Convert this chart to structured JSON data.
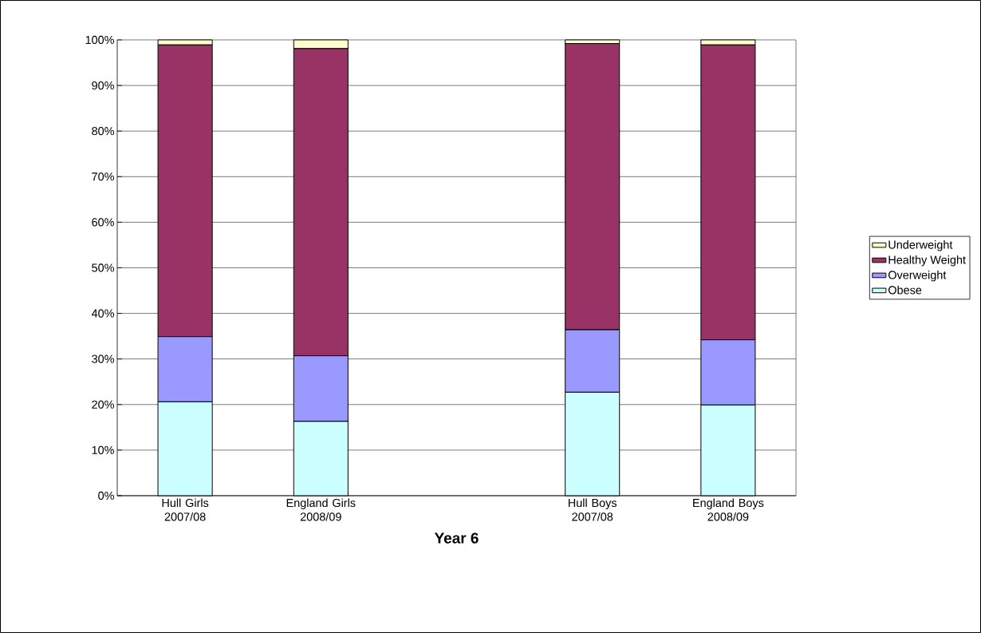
{
  "chart_data": {
    "type": "bar",
    "stacked": true,
    "xlabel": "Year 6",
    "categories": [
      "Hull Girls 2007/08",
      "England Girls 2008/09",
      null,
      "Hull Boys 2007/08",
      "England Boys 2008/09"
    ],
    "series": [
      {
        "name": "Obese",
        "color": "#ccffff",
        "values": [
          20.6,
          16.3,
          null,
          22.7,
          19.9
        ]
      },
      {
        "name": "Overweight",
        "color": "#9999ff",
        "values": [
          14.3,
          14.4,
          null,
          13.7,
          14.3
        ]
      },
      {
        "name": "Healthy Weight",
        "color": "#993366",
        "values": [
          64.0,
          67.4,
          null,
          62.8,
          64.7
        ]
      },
      {
        "name": "Underweight",
        "color": "#ffffcc",
        "values": [
          1.1,
          1.9,
          null,
          0.8,
          1.1
        ]
      }
    ],
    "ylim": [
      0,
      100
    ],
    "yticks": [
      {
        "value": 0,
        "label": "0%"
      },
      {
        "value": 10,
        "label": "10%"
      },
      {
        "value": 20,
        "label": "20%"
      },
      {
        "value": 30,
        "label": "30%"
      },
      {
        "value": 40,
        "label": "40%"
      },
      {
        "value": 50,
        "label": "50%"
      },
      {
        "value": 60,
        "label": "60%"
      },
      {
        "value": 70,
        "label": "70%"
      },
      {
        "value": 80,
        "label": "80%"
      },
      {
        "value": 90,
        "label": "90%"
      },
      {
        "value": 100,
        "label": "100%"
      }
    ],
    "grid": "y",
    "legend": "right"
  }
}
